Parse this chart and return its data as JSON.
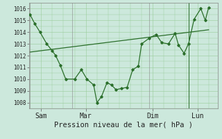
{
  "xlabel": "Pression niveau de la mer( hPa )",
  "bg_color": "#cce8dc",
  "line_color": "#2a6e2a",
  "grid_color": "#99cc99",
  "ylim": [
    1007.5,
    1016.5
  ],
  "ytick_values": [
    1008,
    1009,
    1010,
    1011,
    1012,
    1013,
    1014,
    1015,
    1016
  ],
  "xtick_labels": [
    "Sam",
    "Mar",
    "Dim",
    "Lun"
  ],
  "xtick_positions": [
    0.5,
    2.5,
    5.5,
    7.5
  ],
  "series1_x": [
    0.0,
    0.22,
    0.45,
    0.75,
    1.0,
    1.15,
    1.35,
    1.6,
    2.0,
    2.3,
    2.55,
    2.85,
    3.0,
    3.2,
    3.45,
    3.65,
    3.85,
    4.1,
    4.35,
    4.6,
    4.85,
    5.0,
    5.35,
    5.65,
    5.9,
    6.2,
    6.5,
    6.65,
    6.9,
    7.1,
    7.35,
    7.65,
    7.85,
    8.0
  ],
  "series1_y": [
    1015.5,
    1014.7,
    1014.0,
    1013.0,
    1012.4,
    1012.0,
    1011.2,
    1010.0,
    1010.0,
    1010.8,
    1010.0,
    1009.5,
    1008.0,
    1008.5,
    1009.7,
    1009.5,
    1009.1,
    1009.2,
    1009.3,
    1010.8,
    1011.1,
    1013.0,
    1013.5,
    1013.8,
    1013.1,
    1013.0,
    1013.9,
    1012.9,
    1012.2,
    1013.0,
    1015.1,
    1016.0,
    1015.0,
    1016.1
  ],
  "series2_x": [
    0.0,
    8.0
  ],
  "series2_y": [
    1012.3,
    1014.2
  ],
  "vline_x": 7.1,
  "xlim": [
    -0.05,
    8.4
  ],
  "xlabel_fontsize": 7.5,
  "ytick_fontsize": 5.5,
  "xtick_fontsize": 7.0
}
